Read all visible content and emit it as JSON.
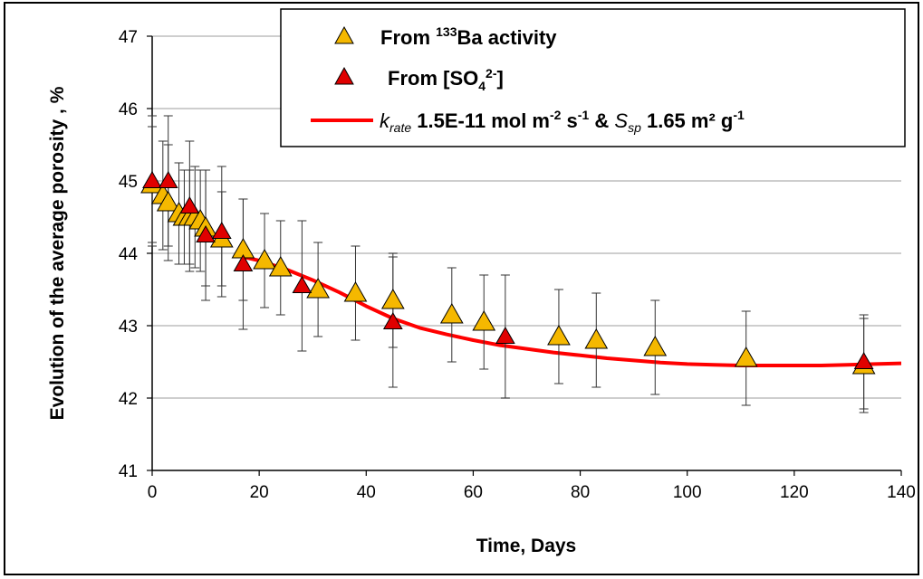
{
  "chart_data": {
    "type": "scatter",
    "xlabel": "Time, Days",
    "ylabel": "Evolution of the average  porosity , %",
    "xlim": [
      0,
      140
    ],
    "ylim": [
      41,
      47
    ],
    "xticks": [
      "0",
      "20",
      "40",
      "60",
      "80",
      "100",
      "120",
      "140"
    ],
    "yticks": [
      "41",
      "42",
      "43",
      "44",
      "45",
      "46",
      "47"
    ],
    "grid": "horizontal",
    "legend_position": "top-right",
    "colors": {
      "ba": "#F5B800",
      "so4": "#E00000",
      "fit": "#FF0000",
      "grid": "#BDBDBD"
    },
    "legend": {
      "ba": {
        "prefix": "From ",
        "sup": "133",
        "rest": "Ba activity"
      },
      "so4": {
        "prefix": "From [SO",
        "sub": "4",
        "sup": "2-",
        "rest": "]"
      },
      "fit": {
        "k": "k",
        "k_sub": "rate",
        "k_val": " 1.5E-11 mol m",
        "k_sup1": "-2",
        "k_mid": " s",
        "k_sup2": "-1",
        "amp": " & ",
        "s": "S",
        "s_sub": "sp",
        "s_val": " 1.65 m² g",
        "s_sup": "-1"
      }
    },
    "series": [
      {
        "name": "From 133Ba activity",
        "marker": "triangle",
        "points": [
          {
            "x": 0,
            "y": 44.95,
            "err": 0.8
          },
          {
            "x": 2,
            "y": 44.8,
            "err": 0.75
          },
          {
            "x": 3,
            "y": 44.7,
            "err": 0.8
          },
          {
            "x": 5,
            "y": 44.55,
            "err": 0.7
          },
          {
            "x": 6,
            "y": 44.5,
            "err": 0.65
          },
          {
            "x": 7,
            "y": 44.5,
            "err": 0.65
          },
          {
            "x": 8,
            "y": 44.5,
            "err": 0.7
          },
          {
            "x": 9,
            "y": 44.45,
            "err": 0.7
          },
          {
            "x": 10,
            "y": 44.35,
            "err": 0.8
          },
          {
            "x": 13,
            "y": 44.2,
            "err": 0.65
          },
          {
            "x": 17,
            "y": 44.05,
            "err": 0.7
          },
          {
            "x": 21,
            "y": 43.9,
            "err": 0.65
          },
          {
            "x": 24,
            "y": 43.8,
            "err": 0.65
          },
          {
            "x": 31,
            "y": 43.5,
            "err": 0.65
          },
          {
            "x": 38,
            "y": 43.45,
            "err": 0.65
          },
          {
            "x": 45,
            "y": 43.35,
            "err": 0.65
          },
          {
            "x": 56,
            "y": 43.15,
            "err": 0.65
          },
          {
            "x": 62,
            "y": 43.05,
            "err": 0.65
          },
          {
            "x": 76,
            "y": 42.85,
            "err": 0.65
          },
          {
            "x": 83,
            "y": 42.8,
            "err": 0.65
          },
          {
            "x": 94,
            "y": 42.7,
            "err": 0.65
          },
          {
            "x": 111,
            "y": 42.55,
            "err": 0.65
          },
          {
            "x": 133,
            "y": 42.45,
            "err": 0.65
          }
        ]
      },
      {
        "name": "From [SO42-]",
        "marker": "triangle",
        "points": [
          {
            "x": 0,
            "y": 45.0,
            "err": 0.9
          },
          {
            "x": 3,
            "y": 45.0,
            "err": 0.9
          },
          {
            "x": 7,
            "y": 44.65,
            "err": 0.9
          },
          {
            "x": 10,
            "y": 44.25,
            "err": 0.9
          },
          {
            "x": 13,
            "y": 44.3,
            "err": 0.9
          },
          {
            "x": 17,
            "y": 43.85,
            "err": 0.9
          },
          {
            "x": 28,
            "y": 43.55,
            "err": 0.9
          },
          {
            "x": 45,
            "y": 43.05,
            "err": 0.9
          },
          {
            "x": 66,
            "y": 42.85,
            "err": 0.85
          },
          {
            "x": 133,
            "y": 42.5,
            "err": 0.65
          }
        ]
      },
      {
        "name": "krate 1.5E-11 mol m-2 s-1 & Ssp 1.65 m² g-1",
        "type": "line",
        "x": [
          17,
          20,
          25,
          30,
          35,
          40,
          45,
          50,
          55,
          60,
          65,
          70,
          75,
          80,
          85,
          90,
          95,
          100,
          105,
          110,
          115,
          120,
          125,
          130,
          135,
          140
        ],
        "y": [
          43.95,
          43.9,
          43.78,
          43.63,
          43.46,
          43.27,
          43.1,
          42.97,
          42.88,
          42.8,
          42.73,
          42.68,
          42.63,
          42.59,
          42.55,
          42.52,
          42.49,
          42.47,
          42.46,
          42.45,
          42.45,
          42.45,
          42.45,
          42.46,
          42.47,
          42.48
        ]
      }
    ]
  }
}
